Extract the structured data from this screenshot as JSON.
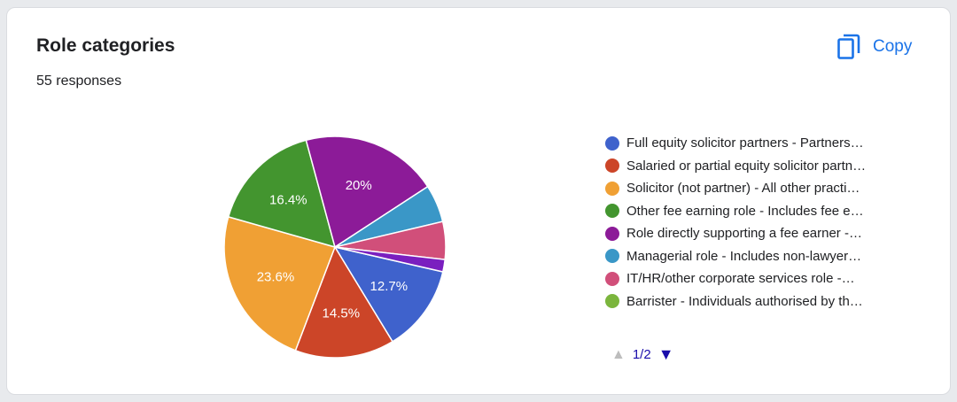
{
  "header": {
    "title": "Role categories",
    "responses": "55 responses",
    "copy_label": "Copy"
  },
  "chart_data": {
    "type": "pie",
    "title": "Role categories",
    "slices": [
      {
        "label": "Full equity solicitor partners - Partners…",
        "value": 12.7,
        "display": "12.7%",
        "color": "#3f62cc"
      },
      {
        "label": "Salaried or partial equity solicitor partn…",
        "value": 14.5,
        "display": "14.5%",
        "color": "#cc4528"
      },
      {
        "label": "Solicitor (not partner) - All other practi…",
        "value": 23.6,
        "display": "23.6%",
        "color": "#f0a034"
      },
      {
        "label": "Other fee earning role - Includes fee e…",
        "value": 16.4,
        "display": "16.4%",
        "color": "#43952f"
      },
      {
        "label": "Role directly supporting a fee earner -…",
        "value": 20.0,
        "display": "20%",
        "color": "#8c1b98"
      },
      {
        "label": "Managerial role - Includes non-lawyer…",
        "value": 5.5,
        "display": "",
        "color": "#3a97c7"
      },
      {
        "label": "IT/HR/other corporate services role -…",
        "value": 5.5,
        "display": "",
        "color": "#d14f7a"
      },
      {
        "label": "Barrister - Individuals authorised by th…",
        "value": 0.0,
        "display": "",
        "color": "#7bb53d"
      },
      {
        "label": "",
        "value": 1.8,
        "display": "",
        "color": "#7a1fbf"
      }
    ],
    "legend_placement": "right"
  },
  "legend_page": {
    "text": "1/2",
    "prev_icon": "triangle-up-icon",
    "next_icon": "triangle-down-icon"
  }
}
